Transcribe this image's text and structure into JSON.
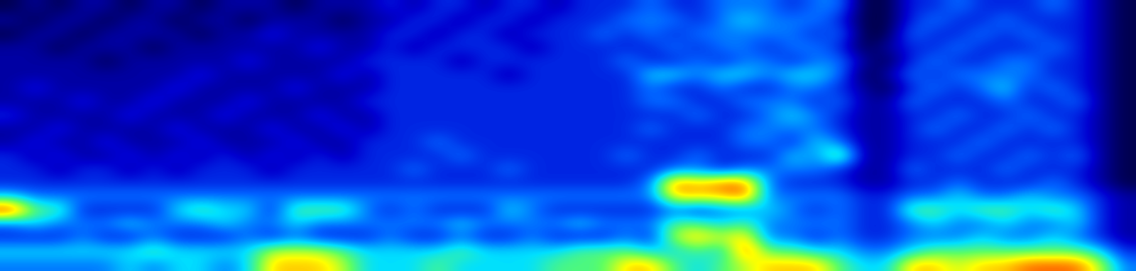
{
  "chart_data": {
    "type": "heatmap",
    "zlim": [
      0,
      10
    ],
    "tick_labels": false,
    "cells": [
      [
        1,
        2,
        1,
        2,
        2,
        1,
        2,
        2,
        1,
        2,
        2,
        2,
        1,
        2,
        2,
        2,
        3,
        2,
        3,
        3,
        2,
        3,
        3,
        2,
        3,
        3,
        3,
        4,
        3,
        3,
        4,
        4,
        4,
        3,
        4,
        4,
        1,
        1,
        3,
        3,
        4,
        3,
        3,
        3,
        4,
        3,
        2,
        1
      ],
      [
        2,
        1,
        2,
        2,
        1,
        2,
        2,
        1,
        2,
        2,
        1,
        2,
        2,
        2,
        1,
        2,
        2,
        3,
        3,
        2,
        3,
        3,
        2,
        3,
        3,
        3,
        4,
        4,
        4,
        3,
        4,
        5,
        4,
        4,
        4,
        3,
        1,
        1,
        3,
        4,
        3,
        3,
        4,
        3,
        3,
        3,
        2,
        1
      ],
      [
        1,
        2,
        2,
        1,
        2,
        2,
        2,
        2,
        1,
        2,
        2,
        3,
        2,
        2,
        2,
        2,
        3,
        3,
        2,
        3,
        3,
        2,
        3,
        3,
        3,
        4,
        3,
        4,
        3,
        4,
        4,
        4,
        4,
        4,
        3,
        4,
        1,
        1,
        4,
        3,
        3,
        4,
        3,
        4,
        3,
        3,
        2,
        1
      ],
      [
        2,
        2,
        1,
        2,
        2,
        2,
        1,
        2,
        2,
        2,
        2,
        2,
        2,
        3,
        2,
        2,
        3,
        2,
        3,
        3,
        3,
        3,
        2,
        3,
        3,
        3,
        3,
        3,
        4,
        3,
        4,
        4,
        3,
        4,
        4,
        3,
        1,
        2,
        3,
        3,
        4,
        3,
        3,
        3,
        4,
        3,
        2,
        1
      ],
      [
        2,
        2,
        2,
        2,
        1,
        2,
        2,
        2,
        2,
        2,
        3,
        2,
        2,
        2,
        2,
        3,
        3,
        3,
        3,
        2,
        3,
        3,
        3,
        3,
        3,
        3,
        4,
        3,
        3,
        4,
        3,
        4,
        4,
        3,
        4,
        4,
        2,
        1,
        3,
        4,
        3,
        3,
        4,
        4,
        3,
        3,
        2,
        1
      ],
      [
        2,
        2,
        2,
        2,
        2,
        2,
        2,
        2,
        3,
        2,
        2,
        2,
        2,
        2,
        3,
        2,
        3,
        3,
        3,
        3,
        3,
        2,
        3,
        3,
        3,
        3,
        3,
        5,
        5,
        4,
        5,
        5,
        4,
        5,
        5,
        4,
        1,
        2,
        4,
        3,
        4,
        4,
        4,
        4,
        3,
        3,
        2,
        1
      ],
      [
        2,
        3,
        2,
        2,
        2,
        2,
        2,
        3,
        2,
        2,
        2,
        2,
        3,
        2,
        2,
        2,
        3,
        3,
        3,
        3,
        3,
        3,
        3,
        3,
        3,
        3,
        3,
        4,
        3,
        3,
        4,
        3,
        3,
        4,
        4,
        3,
        2,
        1,
        3,
        4,
        3,
        4,
        5,
        3,
        4,
        3,
        2,
        1
      ],
      [
        2,
        2,
        2,
        3,
        2,
        2,
        3,
        2,
        2,
        2,
        3,
        2,
        2,
        2,
        2,
        3,
        3,
        3,
        3,
        3,
        3,
        3,
        3,
        3,
        3,
        3,
        3,
        4,
        4,
        3,
        3,
        4,
        4,
        4,
        3,
        4,
        2,
        2,
        4,
        3,
        3,
        3,
        4,
        3,
        3,
        4,
        2,
        1
      ],
      [
        3,
        2,
        2,
        2,
        2,
        3,
        2,
        2,
        2,
        3,
        2,
        2,
        2,
        3,
        2,
        2,
        3,
        3,
        3,
        3,
        3,
        3,
        3,
        3,
        3,
        3,
        3,
        3,
        3,
        4,
        3,
        3,
        4,
        5,
        4,
        3,
        2,
        2,
        3,
        3,
        4,
        3,
        3,
        4,
        3,
        3,
        2,
        1
      ],
      [
        2,
        2,
        3,
        2,
        2,
        2,
        2,
        3,
        2,
        2,
        2,
        3,
        2,
        2,
        3,
        2,
        3,
        3,
        3,
        3,
        3,
        3,
        3,
        3,
        3,
        3,
        3,
        4,
        3,
        3,
        3,
        4,
        4,
        4,
        4,
        3,
        2,
        2,
        3,
        4,
        3,
        3,
        4,
        3,
        4,
        3,
        2,
        1
      ],
      [
        2,
        3,
        2,
        2,
        3,
        2,
        2,
        2,
        3,
        2,
        2,
        2,
        3,
        2,
        2,
        3,
        3,
        3,
        4,
        3,
        3,
        3,
        3,
        3,
        3,
        3,
        3,
        3,
        3,
        3,
        3,
        4,
        4,
        3,
        5,
        4,
        2,
        2,
        3,
        3,
        3,
        4,
        3,
        3,
        3,
        3,
        2,
        1
      ],
      [
        3,
        2,
        3,
        2,
        2,
        3,
        2,
        3,
        2,
        3,
        2,
        3,
        2,
        3,
        2,
        3,
        3,
        3,
        3,
        4,
        3,
        3,
        3,
        3,
        3,
        3,
        4,
        3,
        3,
        4,
        3,
        3,
        3,
        5,
        4,
        7,
        2,
        2,
        3,
        3,
        4,
        3,
        3,
        4,
        3,
        4,
        2,
        1
      ],
      [
        3,
        3,
        2,
        3,
        3,
        2,
        3,
        2,
        3,
        3,
        3,
        2,
        3,
        3,
        3,
        3,
        3,
        4,
        3,
        3,
        3,
        4,
        3,
        3,
        3,
        3,
        3,
        3,
        4,
        4,
        3,
        4,
        4,
        4,
        4,
        3,
        2,
        2,
        4,
        3,
        3,
        3,
        4,
        3,
        3,
        3,
        2,
        1
      ],
      [
        3,
        3,
        3,
        3,
        3,
        3,
        3,
        3,
        3,
        3,
        3,
        3,
        3,
        3,
        3,
        3,
        3,
        3,
        3,
        3,
        3,
        3,
        3,
        3,
        3,
        3,
        3,
        4,
        9,
        8,
        9,
        9,
        4,
        3,
        3,
        3,
        2,
        2,
        3,
        3,
        4,
        3,
        3,
        3,
        4,
        3,
        2,
        1
      ],
      [
        5,
        4,
        4,
        4,
        4,
        4,
        4,
        4,
        4,
        4,
        4,
        4,
        4,
        4,
        4,
        4,
        4,
        4,
        4,
        4,
        4,
        4,
        4,
        4,
        4,
        4,
        4,
        4,
        8,
        8,
        8,
        9,
        4,
        4,
        4,
        4,
        3,
        3,
        4,
        4,
        5,
        4,
        4,
        5,
        4,
        4,
        3,
        2
      ],
      [
        10,
        6,
        6,
        3,
        3,
        3,
        3,
        5,
        6,
        5,
        5,
        3,
        6,
        6,
        6,
        4,
        3,
        4,
        3,
        3,
        3,
        5,
        4,
        3,
        3,
        3,
        3,
        3,
        4,
        3,
        4,
        4,
        5,
        4,
        3,
        4,
        3,
        3,
        6,
        6,
        5,
        6,
        6,
        5,
        6,
        5,
        3,
        2
      ],
      [
        4,
        5,
        4,
        4,
        4,
        5,
        4,
        4,
        4,
        5,
        4,
        4,
        5,
        4,
        4,
        4,
        4,
        4,
        4,
        5,
        4,
        4,
        4,
        4,
        5,
        4,
        4,
        4,
        6,
        6,
        5,
        6,
        4,
        4,
        4,
        4,
        3,
        3,
        4,
        5,
        4,
        4,
        5,
        4,
        4,
        5,
        3,
        2
      ],
      [
        3,
        3,
        3,
        4,
        3,
        3,
        4,
        3,
        3,
        3,
        4,
        3,
        4,
        3,
        3,
        3,
        4,
        3,
        3,
        4,
        3,
        3,
        4,
        3,
        3,
        3,
        4,
        3,
        7,
        8,
        7,
        8,
        4,
        4,
        3,
        4,
        3,
        3,
        4,
        4,
        4,
        5,
        4,
        4,
        5,
        4,
        3,
        2
      ],
      [
        5,
        5,
        5,
        5,
        5,
        5,
        6,
        5,
        5,
        5,
        5,
        7,
        7,
        7,
        6,
        5,
        5,
        5,
        5,
        6,
        5,
        5,
        5,
        5,
        6,
        6,
        6,
        5,
        5,
        6,
        5,
        9,
        6,
        6,
        5,
        5,
        4,
        4,
        5,
        6,
        6,
        6,
        6,
        6,
        6,
        6,
        5,
        3
      ],
      [
        4,
        4,
        4,
        4,
        4,
        5,
        4,
        5,
        5,
        4,
        5,
        8,
        8,
        8,
        7,
        5,
        5,
        5,
        6,
        5,
        5,
        5,
        5,
        6,
        6,
        6,
        8,
        8,
        6,
        5,
        6,
        7,
        8,
        8,
        8,
        6,
        5,
        5,
        8,
        8,
        7,
        8,
        8,
        9,
        9,
        9,
        7,
        4
      ]
    ]
  }
}
